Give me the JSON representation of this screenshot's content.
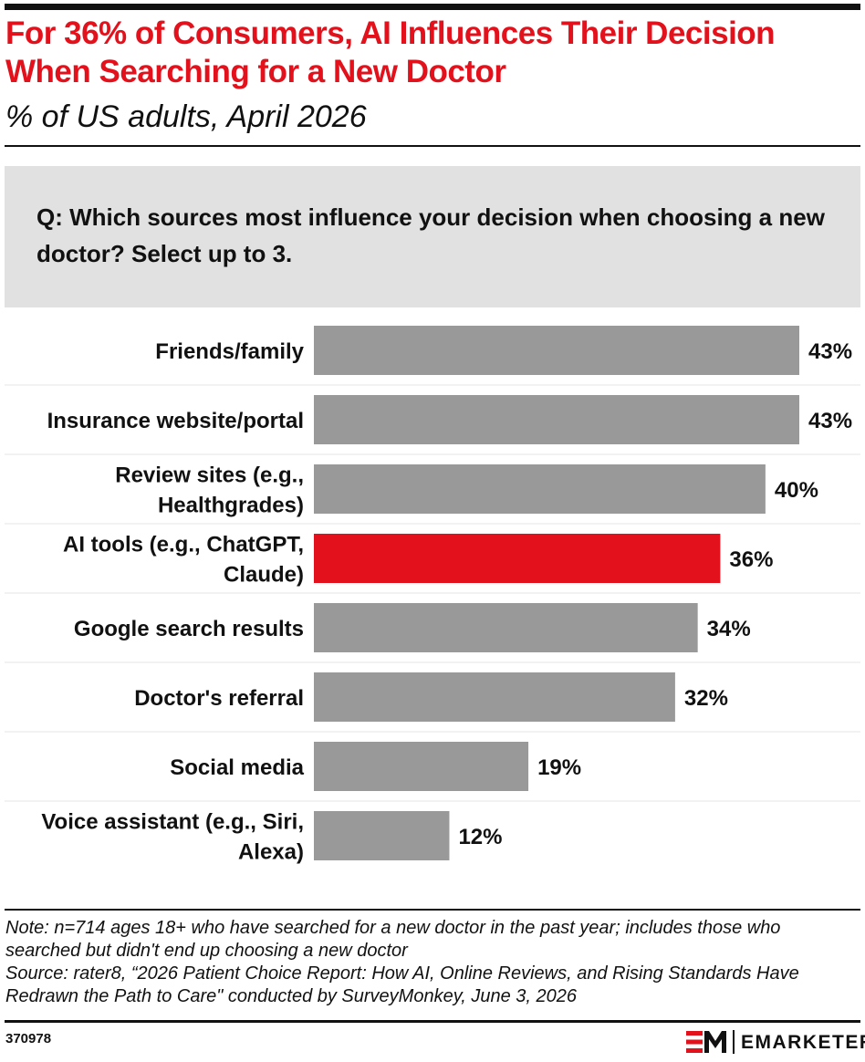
{
  "header": {
    "title": "For 36% of Consumers, AI Influences Their Decision When Searching for a New Doctor",
    "subtitle": "% of US adults, April 2026"
  },
  "question": "Q: Which sources most influence your decision when choosing a new doctor? Select up to 3.",
  "chart_data": {
    "type": "bar",
    "orientation": "horizontal",
    "categories": [
      [
        "Friends/family"
      ],
      [
        "Insurance website/portal"
      ],
      [
        "Review sites (e.g.,",
        "Healthgrades)"
      ],
      [
        "AI tools (e.g., ChatGPT,",
        "Claude)"
      ],
      [
        "Google search results"
      ],
      [
        "Doctor's referral"
      ],
      [
        "Social media"
      ],
      [
        "Voice assistant (e.g., Siri,",
        "Alexa)"
      ]
    ],
    "values": [
      43,
      43,
      40,
      36,
      34,
      32,
      19,
      12
    ],
    "value_labels": [
      "43%",
      "43%",
      "40%",
      "36%",
      "34%",
      "32%",
      "19%",
      "12%"
    ],
    "highlight_index": 3,
    "bar_color": "#999999",
    "highlight_color": "#e3111b",
    "xlim": [
      0,
      43
    ],
    "grid": false,
    "legend": "none"
  },
  "footer": {
    "note": "Note: n=714 ages 18+ who have searched for a new doctor in the past year; includes those who searched but didn't end up choosing a new doctor",
    "source": "Source: rater8, “2026 Patient Choice Report: How AI, Online Reviews, and Rising Standards Have Redrawn the Path to Care\" conducted by SurveyMonkey, June 3, 2026",
    "chart_id": "370978",
    "brand": "EMARKETER"
  }
}
